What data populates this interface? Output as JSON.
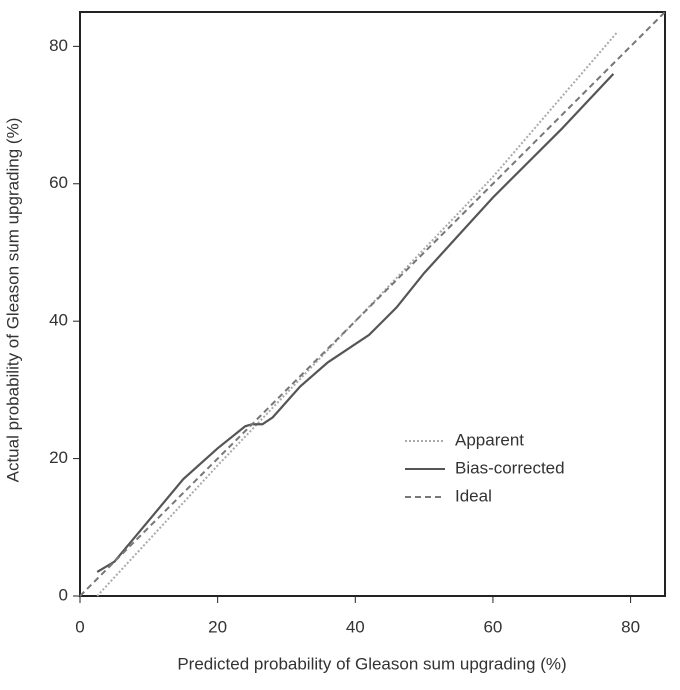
{
  "chart_data": {
    "type": "line",
    "x_label": "Predicted probability of Gleason sum upgrading (%)",
    "y_label": "Actual probability of Gleason sum upgrading (%)",
    "xlim": [
      0,
      85
    ],
    "ylim": [
      0,
      85
    ],
    "xticks": [
      0,
      20,
      40,
      60,
      80
    ],
    "yticks": [
      0,
      20,
      40,
      60,
      80
    ],
    "legend_position": "lower right",
    "series": [
      {
        "name": "Apparent",
        "color": "#aaaaaa",
        "style": "dotted",
        "x": [
          2.5,
          20,
          40,
          60,
          78
        ],
        "values": [
          0,
          19,
          40,
          61,
          82
        ]
      },
      {
        "name": "Bias-corrected",
        "color": "#555555",
        "style": "solid",
        "x": [
          2.5,
          5,
          10,
          15,
          20,
          24,
          25,
          26.5,
          28,
          32,
          36,
          42,
          46,
          50,
          55,
          60,
          65,
          70,
          77.5
        ],
        "values": [
          3.5,
          5,
          11,
          17,
          21.5,
          24.7,
          25,
          25,
          26,
          30.5,
          34,
          38,
          42,
          47,
          52.5,
          58,
          63,
          68,
          76
        ]
      },
      {
        "name": "Ideal",
        "color": "#777777",
        "style": "dashed",
        "x": [
          0,
          85
        ],
        "values": [
          0,
          85
        ]
      }
    ]
  }
}
